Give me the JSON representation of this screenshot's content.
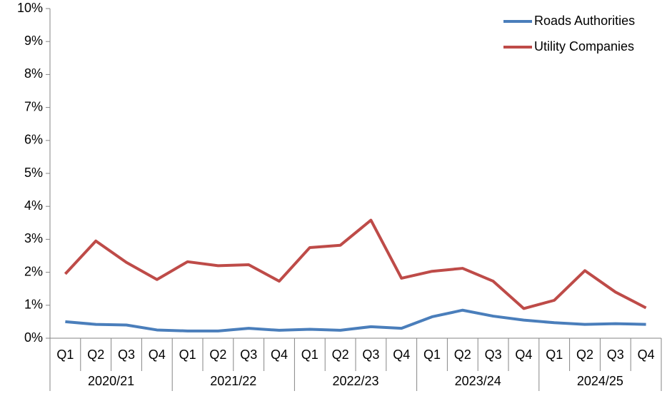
{
  "chart_data": {
    "type": "line",
    "categories": [
      "Q1",
      "Q2",
      "Q3",
      "Q4",
      "Q1",
      "Q2",
      "Q3",
      "Q4",
      "Q1",
      "Q2",
      "Q3",
      "Q4",
      "Q1",
      "Q2",
      "Q3",
      "Q4",
      "Q1",
      "Q2",
      "Q3",
      "Q4"
    ],
    "category_groups": [
      "2020/21",
      "2021/22",
      "2022/23",
      "2023/24",
      "2024/25"
    ],
    "series": [
      {
        "name": "Roads Authorities",
        "color": "#4a7ebb",
        "values": [
          0.5,
          0.42,
          0.4,
          0.25,
          0.22,
          0.22,
          0.3,
          0.24,
          0.27,
          0.24,
          0.35,
          0.3,
          0.65,
          0.85,
          0.67,
          0.55,
          0.47,
          0.42,
          0.44,
          0.42
        ]
      },
      {
        "name": "Utility Companies",
        "color": "#be4b48",
        "values": [
          1.95,
          2.95,
          2.3,
          1.78,
          2.32,
          2.2,
          2.23,
          1.73,
          2.75,
          2.82,
          3.58,
          1.82,
          2.03,
          2.12,
          1.73,
          0.9,
          1.15,
          2.05,
          1.4,
          0.92
        ]
      }
    ],
    "ylim": [
      0,
      10
    ],
    "yticks": [
      {
        "value": 0,
        "label": "0%"
      },
      {
        "value": 1,
        "label": "1%"
      },
      {
        "value": 2,
        "label": "2%"
      },
      {
        "value": 3,
        "label": "3%"
      },
      {
        "value": 4,
        "label": "4%"
      },
      {
        "value": 5,
        "label": "5%"
      },
      {
        "value": 6,
        "label": "6%"
      },
      {
        "value": 7,
        "label": "7%"
      },
      {
        "value": 8,
        "label": "8%"
      },
      {
        "value": 9,
        "label": "9%"
      },
      {
        "value": 10,
        "label": "10%"
      }
    ],
    "grid": false,
    "legend": "top-right"
  }
}
